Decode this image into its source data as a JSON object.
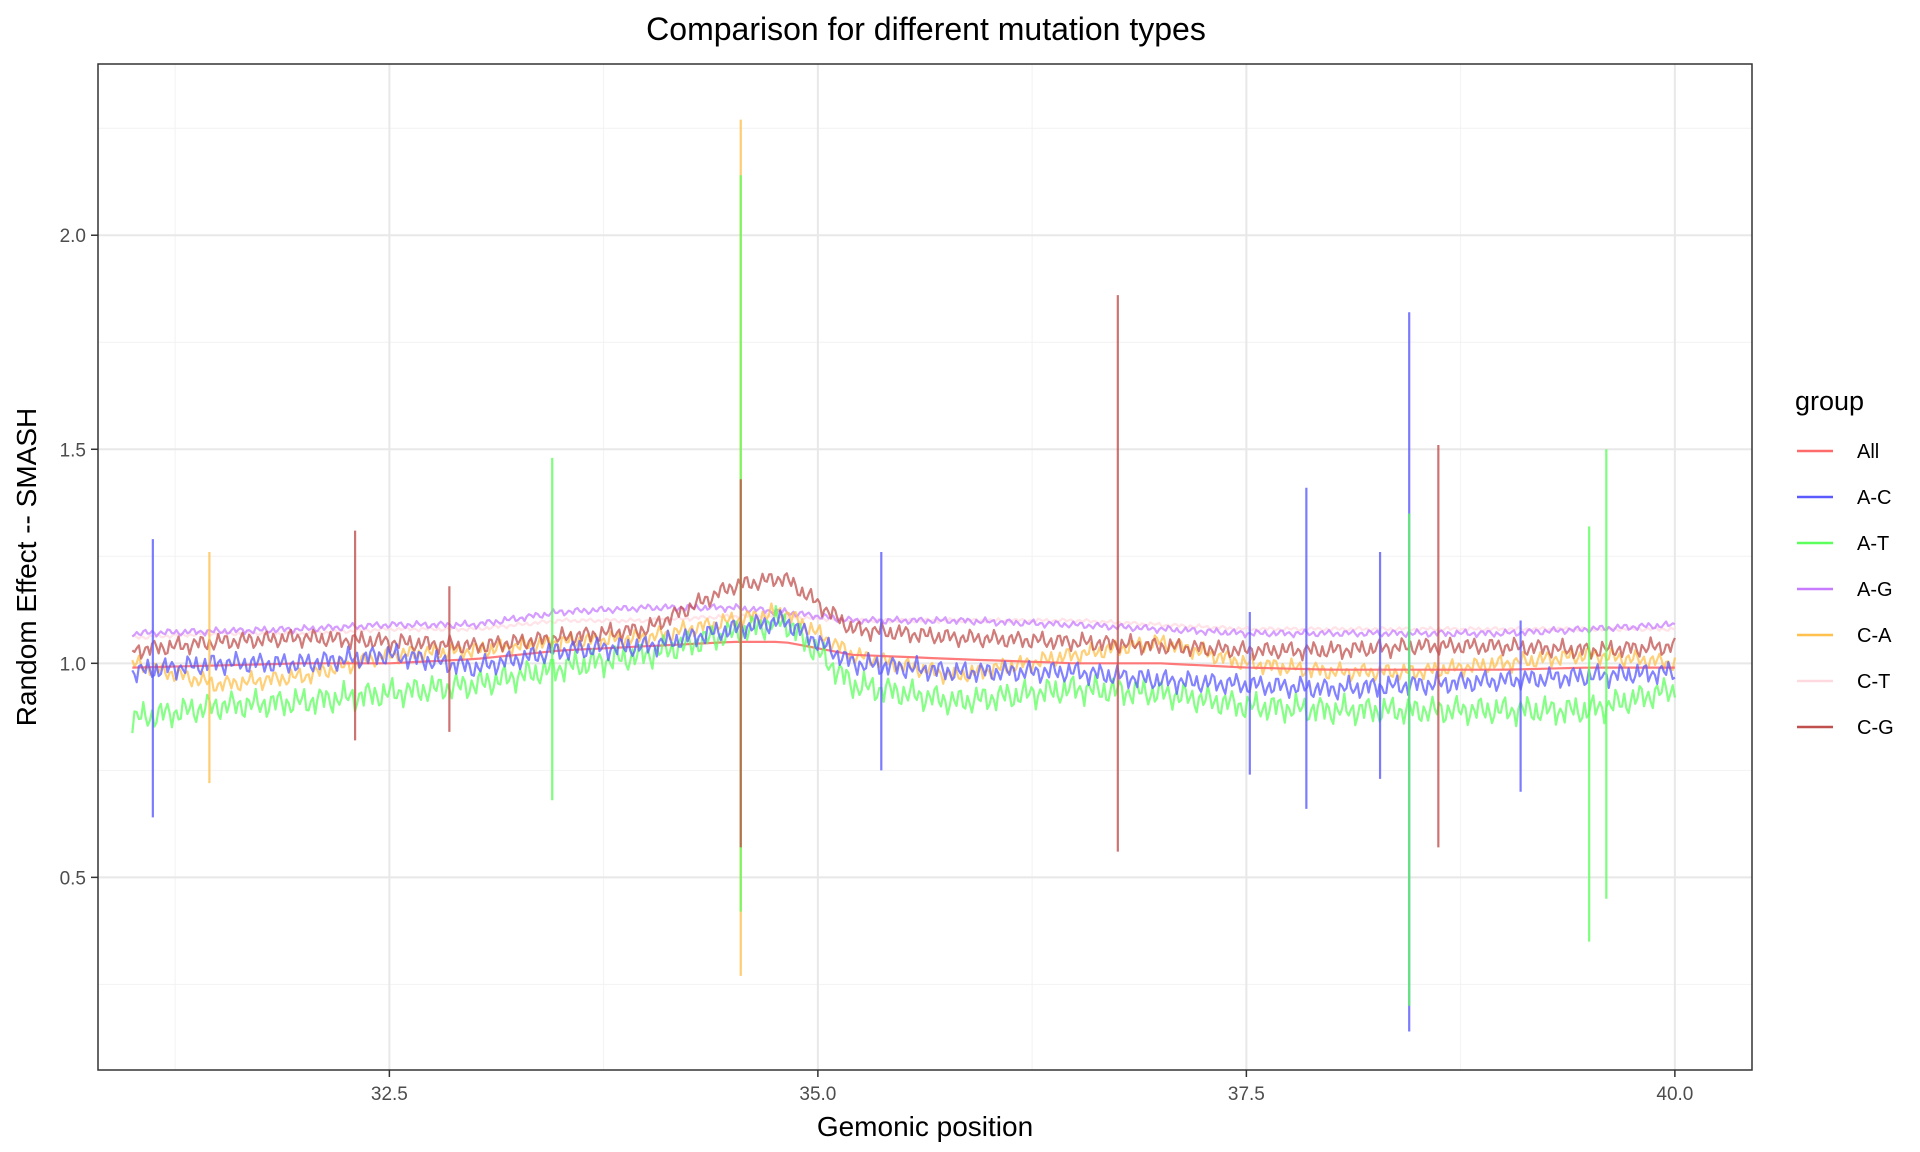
{
  "chart_data": {
    "type": "line",
    "title": "Comparison for different mutation types",
    "xlabel": "Gemonic position",
    "ylabel": "Random Effect -- SMASH",
    "xlim": [
      30.8,
      40.45
    ],
    "ylim": [
      0.05,
      2.4
    ],
    "x_ticks": [
      32.5,
      35.0,
      37.5,
      40.0
    ],
    "x_tick_labels": [
      "32.5",
      "35.0",
      "37.5",
      "40.0"
    ],
    "y_ticks": [
      0.5,
      1.0,
      1.5,
      2.0
    ],
    "y_tick_labels": [
      "0.5",
      "1.0",
      "1.5",
      "2.0"
    ],
    "grid": true,
    "legend_title": "group",
    "legend_position": "right",
    "series": [
      {
        "name": "All",
        "color": "#ff6b6b",
        "x": [
          31.0,
          31.5,
          32.0,
          32.5,
          33.0,
          33.5,
          34.0,
          34.5,
          34.8,
          35.2,
          35.8,
          36.5,
          37.0,
          37.5,
          38.0,
          38.5,
          39.0,
          39.5,
          40.0
        ],
        "values": [
          0.99,
          0.995,
          1.0,
          1.0,
          1.01,
          1.03,
          1.04,
          1.05,
          1.05,
          1.02,
          1.01,
          1.0,
          1.0,
          0.99,
          0.985,
          0.985,
          0.985,
          0.99,
          0.99
        ]
      },
      {
        "name": "A-C",
        "color": "#5a5aff",
        "x": [
          31.0,
          31.5,
          32.0,
          32.5,
          33.0,
          33.5,
          34.0,
          34.5,
          34.8,
          35.2,
          35.8,
          36.5,
          37.0,
          37.5,
          38.0,
          38.5,
          39.0,
          39.5,
          40.0
        ],
        "values": [
          0.98,
          1.0,
          1.0,
          1.02,
          0.99,
          1.03,
          1.04,
          1.08,
          1.1,
          1.0,
          0.98,
          0.98,
          0.96,
          0.95,
          0.94,
          0.95,
          0.96,
          0.97,
          0.98
        ]
      },
      {
        "name": "A-T",
        "color": "#5cff5c",
        "x": [
          31.0,
          31.5,
          32.0,
          32.5,
          33.0,
          33.5,
          34.0,
          34.5,
          34.8,
          35.2,
          35.8,
          36.5,
          37.0,
          37.5,
          38.0,
          38.5,
          39.0,
          39.5,
          40.0
        ],
        "values": [
          0.87,
          0.9,
          0.91,
          0.93,
          0.95,
          0.99,
          1.02,
          1.07,
          1.1,
          0.95,
          0.91,
          0.94,
          0.93,
          0.9,
          0.89,
          0.89,
          0.89,
          0.89,
          0.94
        ]
      },
      {
        "name": "A-G",
        "color": "#c77cff",
        "x": [
          31.0,
          31.5,
          32.0,
          32.5,
          33.0,
          33.5,
          34.0,
          34.5,
          34.8,
          35.2,
          35.8,
          36.5,
          37.0,
          37.5,
          38.0,
          38.5,
          39.0,
          39.5,
          40.0
        ],
        "values": [
          1.07,
          1.075,
          1.08,
          1.09,
          1.09,
          1.12,
          1.13,
          1.13,
          1.12,
          1.1,
          1.1,
          1.09,
          1.08,
          1.07,
          1.07,
          1.07,
          1.07,
          1.08,
          1.09
        ]
      },
      {
        "name": "C-A",
        "color": "#ffc04d",
        "x": [
          31.0,
          31.5,
          32.0,
          32.5,
          33.0,
          33.5,
          34.0,
          34.5,
          34.8,
          35.2,
          35.8,
          36.5,
          37.0,
          37.5,
          38.0,
          38.5,
          39.0,
          39.5,
          40.0
        ],
        "values": [
          1.0,
          0.95,
          0.97,
          1.02,
          1.03,
          1.05,
          1.06,
          1.1,
          1.12,
          1.02,
          0.97,
          1.02,
          1.05,
          1.0,
          0.98,
          0.98,
          1.0,
          1.02,
          1.0
        ]
      },
      {
        "name": "C-T",
        "color": "#ffd9e0",
        "x": [
          31.0,
          31.5,
          32.0,
          32.5,
          33.0,
          33.5,
          34.0,
          34.5,
          34.8,
          35.2,
          35.8,
          36.5,
          37.0,
          37.5,
          38.0,
          38.5,
          39.0,
          39.5,
          40.0
        ],
        "values": [
          1.06,
          1.07,
          1.07,
          1.08,
          1.08,
          1.1,
          1.1,
          1.11,
          1.11,
          1.1,
          1.1,
          1.1,
          1.09,
          1.08,
          1.08,
          1.08,
          1.08,
          1.08,
          1.08
        ]
      },
      {
        "name": "C-G",
        "color": "#c0504d",
        "x": [
          31.0,
          31.5,
          32.0,
          32.5,
          33.0,
          33.5,
          34.0,
          34.5,
          34.8,
          35.2,
          35.8,
          36.5,
          37.0,
          37.5,
          38.0,
          38.5,
          39.0,
          39.5,
          40.0
        ],
        "values": [
          1.03,
          1.05,
          1.06,
          1.05,
          1.04,
          1.06,
          1.08,
          1.18,
          1.2,
          1.08,
          1.06,
          1.05,
          1.04,
          1.03,
          1.03,
          1.04,
          1.04,
          1.03,
          1.04
        ]
      }
    ],
    "spikes": [
      {
        "series": "A-C",
        "x": 31.12,
        "min": 0.64,
        "max": 1.29
      },
      {
        "series": "C-A",
        "x": 31.45,
        "min": 0.72,
        "max": 1.26
      },
      {
        "series": "C-G",
        "x": 32.3,
        "min": 0.82,
        "max": 1.31
      },
      {
        "series": "C-G",
        "x": 32.85,
        "min": 0.84,
        "max": 1.18
      },
      {
        "series": "A-T",
        "x": 33.45,
        "min": 0.68,
        "max": 1.48
      },
      {
        "series": "C-A",
        "x": 34.55,
        "min": 0.27,
        "max": 2.27
      },
      {
        "series": "A-T",
        "x": 34.55,
        "min": 0.42,
        "max": 2.14
      },
      {
        "series": "C-G",
        "x": 34.55,
        "min": 0.57,
        "max": 1.43
      },
      {
        "series": "A-C",
        "x": 35.37,
        "min": 0.75,
        "max": 1.26
      },
      {
        "series": "C-G",
        "x": 36.75,
        "min": 0.56,
        "max": 1.86
      },
      {
        "series": "A-C",
        "x": 37.52,
        "min": 0.74,
        "max": 1.12
      },
      {
        "series": "A-C",
        "x": 37.85,
        "min": 0.66,
        "max": 1.41
      },
      {
        "series": "A-C",
        "x": 38.28,
        "min": 0.73,
        "max": 1.26
      },
      {
        "series": "A-C",
        "x": 38.45,
        "min": 0.14,
        "max": 1.82
      },
      {
        "series": "A-T",
        "x": 38.45,
        "min": 0.2,
        "max": 1.35
      },
      {
        "series": "C-G",
        "x": 38.62,
        "min": 0.57,
        "max": 1.51
      },
      {
        "series": "A-C",
        "x": 39.1,
        "min": 0.7,
        "max": 1.1
      },
      {
        "series": "A-T",
        "x": 39.5,
        "min": 0.35,
        "max": 1.32
      },
      {
        "series": "A-T",
        "x": 39.6,
        "min": 0.45,
        "max": 1.5
      }
    ]
  }
}
